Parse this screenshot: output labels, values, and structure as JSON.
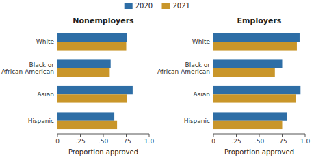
{
  "chart_data": [
    {
      "type": "bar",
      "orientation": "horizontal",
      "title": "Nonemployers",
      "categories": [
        "White",
        "Black or\nAfrican American",
        "Asian",
        "Hispanic"
      ],
      "series": [
        {
          "name": "2020",
          "color": "#2E6EA6",
          "values": [
            0.76,
            0.58,
            0.82,
            0.62
          ]
        },
        {
          "name": "2021",
          "color": "#C9962A",
          "values": [
            0.75,
            0.57,
            0.76,
            0.65
          ]
        }
      ],
      "xlabel": "Proportion approved",
      "xlim": [
        0,
        1.0
      ],
      "xticks": [
        0,
        {
          "value": 0.25,
          "label": ".25"
        },
        {
          "value": 0.5,
          "label": ".50"
        },
        {
          "value": 0.75,
          "label": ".75"
        },
        {
          "value": 1.0,
          "label": "1.0"
        }
      ],
      "grid": false,
      "legend": "top"
    },
    {
      "type": "bar",
      "orientation": "horizontal",
      "title": "Employers",
      "categories": [
        "White",
        "Black or\nAfrican American",
        "Asian",
        "Hispanic"
      ],
      "series": [
        {
          "name": "2020",
          "color": "#2E6EA6",
          "values": [
            0.94,
            0.75,
            0.95,
            0.8
          ]
        },
        {
          "name": "2021",
          "color": "#C9962A",
          "values": [
            0.91,
            0.67,
            0.9,
            0.75
          ]
        }
      ],
      "xlabel": "Proportion approved",
      "xlim": [
        0,
        1.0
      ],
      "xticks": [
        0,
        {
          "value": 0.25,
          "label": ".25"
        },
        {
          "value": 0.5,
          "label": ".50"
        },
        {
          "value": 0.75,
          "label": ".75"
        },
        {
          "value": 1.0,
          "label": "1.0"
        }
      ],
      "grid": false
    }
  ]
}
